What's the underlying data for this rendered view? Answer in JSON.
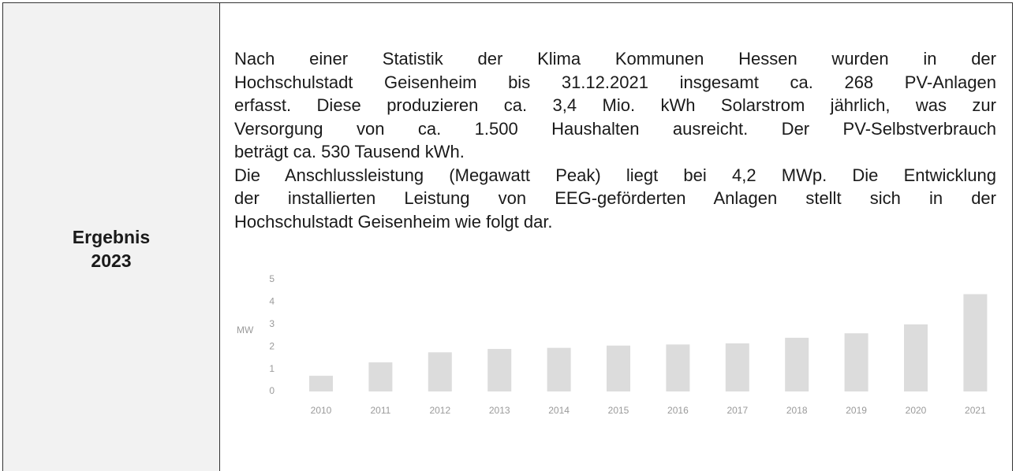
{
  "table": {
    "label": [
      "Ergebnis",
      "2023"
    ],
    "paragraphs": [
      [
        "Nach einer Statistik der Klima Kommunen Hessen wurden in der",
        "Hochschulstadt Geisenheim bis 31.12.2021 insgesamt ca. 268 PV-Anlagen",
        "erfasst. Diese produzieren ca. 3,4 Mio. kWh Solarstrom jährlich, was zur",
        "Versorgung von ca. 1.500 Haushalten ausreicht. Der PV-Selbstverbrauch",
        "beträgt ca. 530 Tausend kWh."
      ],
      [
        "Die Anschlussleistung (Megawatt Peak) liegt bei 4,2 MWp. Die Entwicklung",
        "der installierten Leistung von EEG-geförderten Anlagen stellt sich in der",
        "Hochschulstadt Geisenheim wie folgt dar."
      ]
    ]
  },
  "chart_data": {
    "type": "bar",
    "y_label": "MW",
    "categories": [
      "2010",
      "2011",
      "2012",
      "2013",
      "2014",
      "2015",
      "2016",
      "2017",
      "2018",
      "2019",
      "2020",
      "2021"
    ],
    "values": [
      0.7,
      1.3,
      1.75,
      1.9,
      1.95,
      2.05,
      2.1,
      2.15,
      2.4,
      2.6,
      3.0,
      4.35
    ],
    "color": "#dcdcdc",
    "ylim": [
      0,
      5
    ],
    "yticks": [
      0,
      1,
      2,
      3,
      4,
      5
    ],
    "grid": false
  }
}
